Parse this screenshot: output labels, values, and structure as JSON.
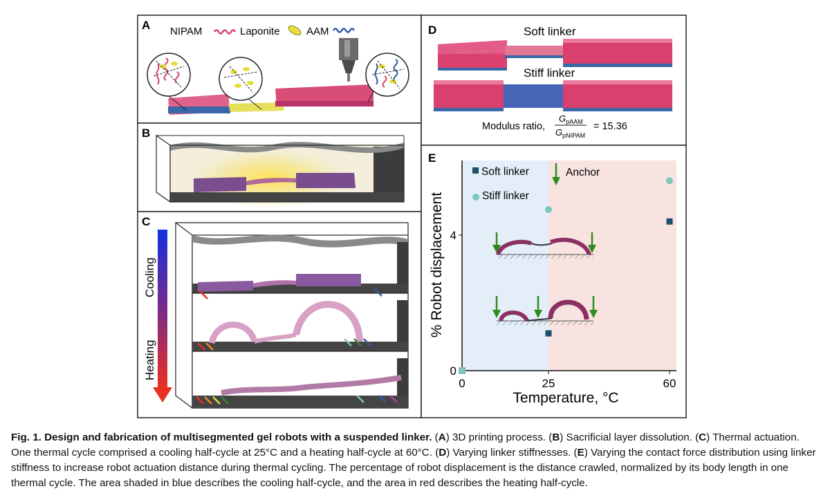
{
  "panels": {
    "A": {
      "label": "A",
      "legend": [
        {
          "name": "NIPAM",
          "color": "#d9406e"
        },
        {
          "name": "Laponite",
          "color": "#e6dd3a"
        },
        {
          "name": "AAM",
          "color": "#2f5aa8"
        }
      ]
    },
    "B": {
      "label": "B"
    },
    "C": {
      "label": "C",
      "arrow_top_label": "Cooling",
      "arrow_bottom_label": "Heating"
    },
    "D": {
      "label": "D",
      "soft_label": "Soft linker",
      "stiff_label": "Stiff linker",
      "modulus_prefix": "Modulus ratio,",
      "numerator": "G",
      "numerator_sub": "pAAM",
      "denominator": "G",
      "denominator_sub": "pNIPAM",
      "modulus_value": "= 15.36"
    },
    "E": {
      "label": "E"
    }
  },
  "chart_data": {
    "type": "scatter",
    "xlabel": "Temperature, °C",
    "ylabel": "% Robot displacement",
    "xlim": [
      0,
      62
    ],
    "ylim": [
      0,
      6.2
    ],
    "xticks": [
      0,
      25,
      60
    ],
    "yticks": [
      0,
      4
    ],
    "shaded_regions": [
      {
        "from": 0,
        "to": 25,
        "color": "#e3eef9",
        "meaning": "cooling"
      },
      {
        "from": 25,
        "to": 62,
        "color": "#f8e3e1",
        "meaning": "heating"
      }
    ],
    "legend_position": "top-left",
    "legend": [
      {
        "label": "Soft linker",
        "marker": "square",
        "color": "#1f4e6b"
      },
      {
        "label": "Stiff linker",
        "marker": "circle",
        "color": "#7cc8bd"
      },
      {
        "label": "Anchor",
        "marker": "down-arrow",
        "color": "#2e8b1e"
      }
    ],
    "series": [
      {
        "name": "Soft linker",
        "marker": "square",
        "color": "#1f4e6b",
        "points": [
          [
            0,
            0
          ],
          [
            25,
            1.1
          ],
          [
            60,
            4.4
          ]
        ]
      },
      {
        "name": "Stiff linker",
        "marker": "circle",
        "color": "#7cc8bd",
        "points": [
          [
            0,
            0
          ],
          [
            25,
            4.75
          ],
          [
            60,
            5.6
          ]
        ]
      }
    ]
  },
  "caption": {
    "bold": "Fig. 1. Design and fabrication of multisegmented gel robots with a suspended linker.",
    "parts": [
      {
        "t": " (",
        "b": false
      },
      {
        "t": "A",
        "b": true
      },
      {
        "t": ") 3D printing process. (",
        "b": false
      },
      {
        "t": "B",
        "b": true
      },
      {
        "t": ") Sacrificial layer dissolution. (",
        "b": false
      },
      {
        "t": "C",
        "b": true
      },
      {
        "t": ") Thermal actuation. One thermal cycle comprised a cooling half-cycle at 25°C and a heating half-cycle at 60°C. (",
        "b": false
      },
      {
        "t": "D",
        "b": true
      },
      {
        "t": ") Varying linker stiffnesses. (",
        "b": false
      },
      {
        "t": "E",
        "b": true
      },
      {
        "t": ") Varying the contact force distribution using linker stiffness to increase robot actuation distance during thermal cycling. The percentage of robot displacement is the distance crawled, normalized by its body length in one thermal cycle. The area shaded in blue describes the cooling half-cycle, and the area in red describes the heating half-cycle.",
        "b": false
      }
    ]
  }
}
